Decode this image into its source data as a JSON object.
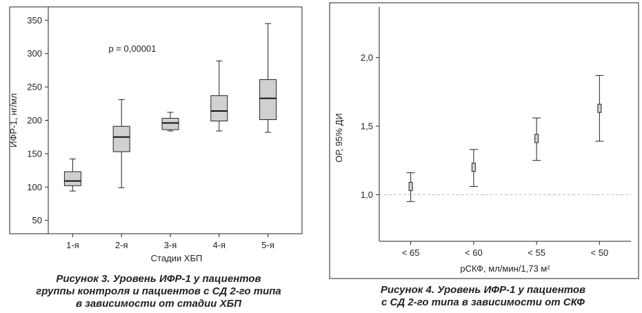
{
  "figures": [
    {
      "caption": [
        "Рисунок 3.  Уровень ИФР-1 у пациентов",
        "группы контроля и пациентов с СД 2-го типа",
        "в зависимости от стадии ХБП"
      ]
    },
    {
      "caption": [
        "Рисунок 4.  Уровень ИФР-1 у пациентов",
        "с СД 2-го типа в зависимости от СКФ"
      ]
    }
  ],
  "chart_data": [
    {
      "type": "box",
      "categories": [
        "1-я",
        "2-я",
        "3-я",
        "4-я",
        "5-я"
      ],
      "boxes": [
        {
          "min": 94,
          "q1": 102,
          "median": 109,
          "q3": 123,
          "max": 142
        },
        {
          "min": 99,
          "q1": 153,
          "median": 175,
          "q3": 191,
          "max": 231
        },
        {
          "min": 184,
          "q1": 186,
          "median": 196,
          "q3": 203,
          "max": 212
        },
        {
          "min": 184,
          "q1": 199,
          "median": 214,
          "q3": 237,
          "max": 289
        },
        {
          "min": 182,
          "q1": 201,
          "median": 233,
          "q3": 261,
          "max": 345
        }
      ],
      "annotation": "p = 0,00001",
      "xlabel": "Стадии ХБП",
      "ylabel": "ИФР-1, нг/мл",
      "yticks": [
        50,
        100,
        150,
        200,
        250,
        300,
        350
      ],
      "ytick_labels": [
        "50",
        "100",
        "150",
        "200",
        "250",
        "300",
        "350"
      ],
      "ylim": [
        30,
        370
      ],
      "box_fill": "#d0d0d0"
    },
    {
      "type": "errorbar",
      "categories": [
        "< 65",
        "< 60",
        "< 55",
        "< 50"
      ],
      "points": [
        {
          "estimate": 1.06,
          "lower": 0.95,
          "upper": 1.16
        },
        {
          "estimate": 1.2,
          "lower": 1.06,
          "upper": 1.33
        },
        {
          "estimate": 1.41,
          "lower": 1.25,
          "upper": 1.56
        },
        {
          "estimate": 1.63,
          "lower": 1.39,
          "upper": 1.87
        }
      ],
      "xlabel": "рСКФ, мл/мин/1,73 м²",
      "ylabel": "ОР, 95% ДИ",
      "yticks": [
        1.0,
        1.5,
        2.0
      ],
      "ytick_labels": [
        "1,0",
        "1,5",
        "2,0"
      ],
      "ylim": [
        0.66,
        2.37
      ],
      "reference_line": 1.0,
      "box_fill": "#d0d0d0"
    }
  ]
}
